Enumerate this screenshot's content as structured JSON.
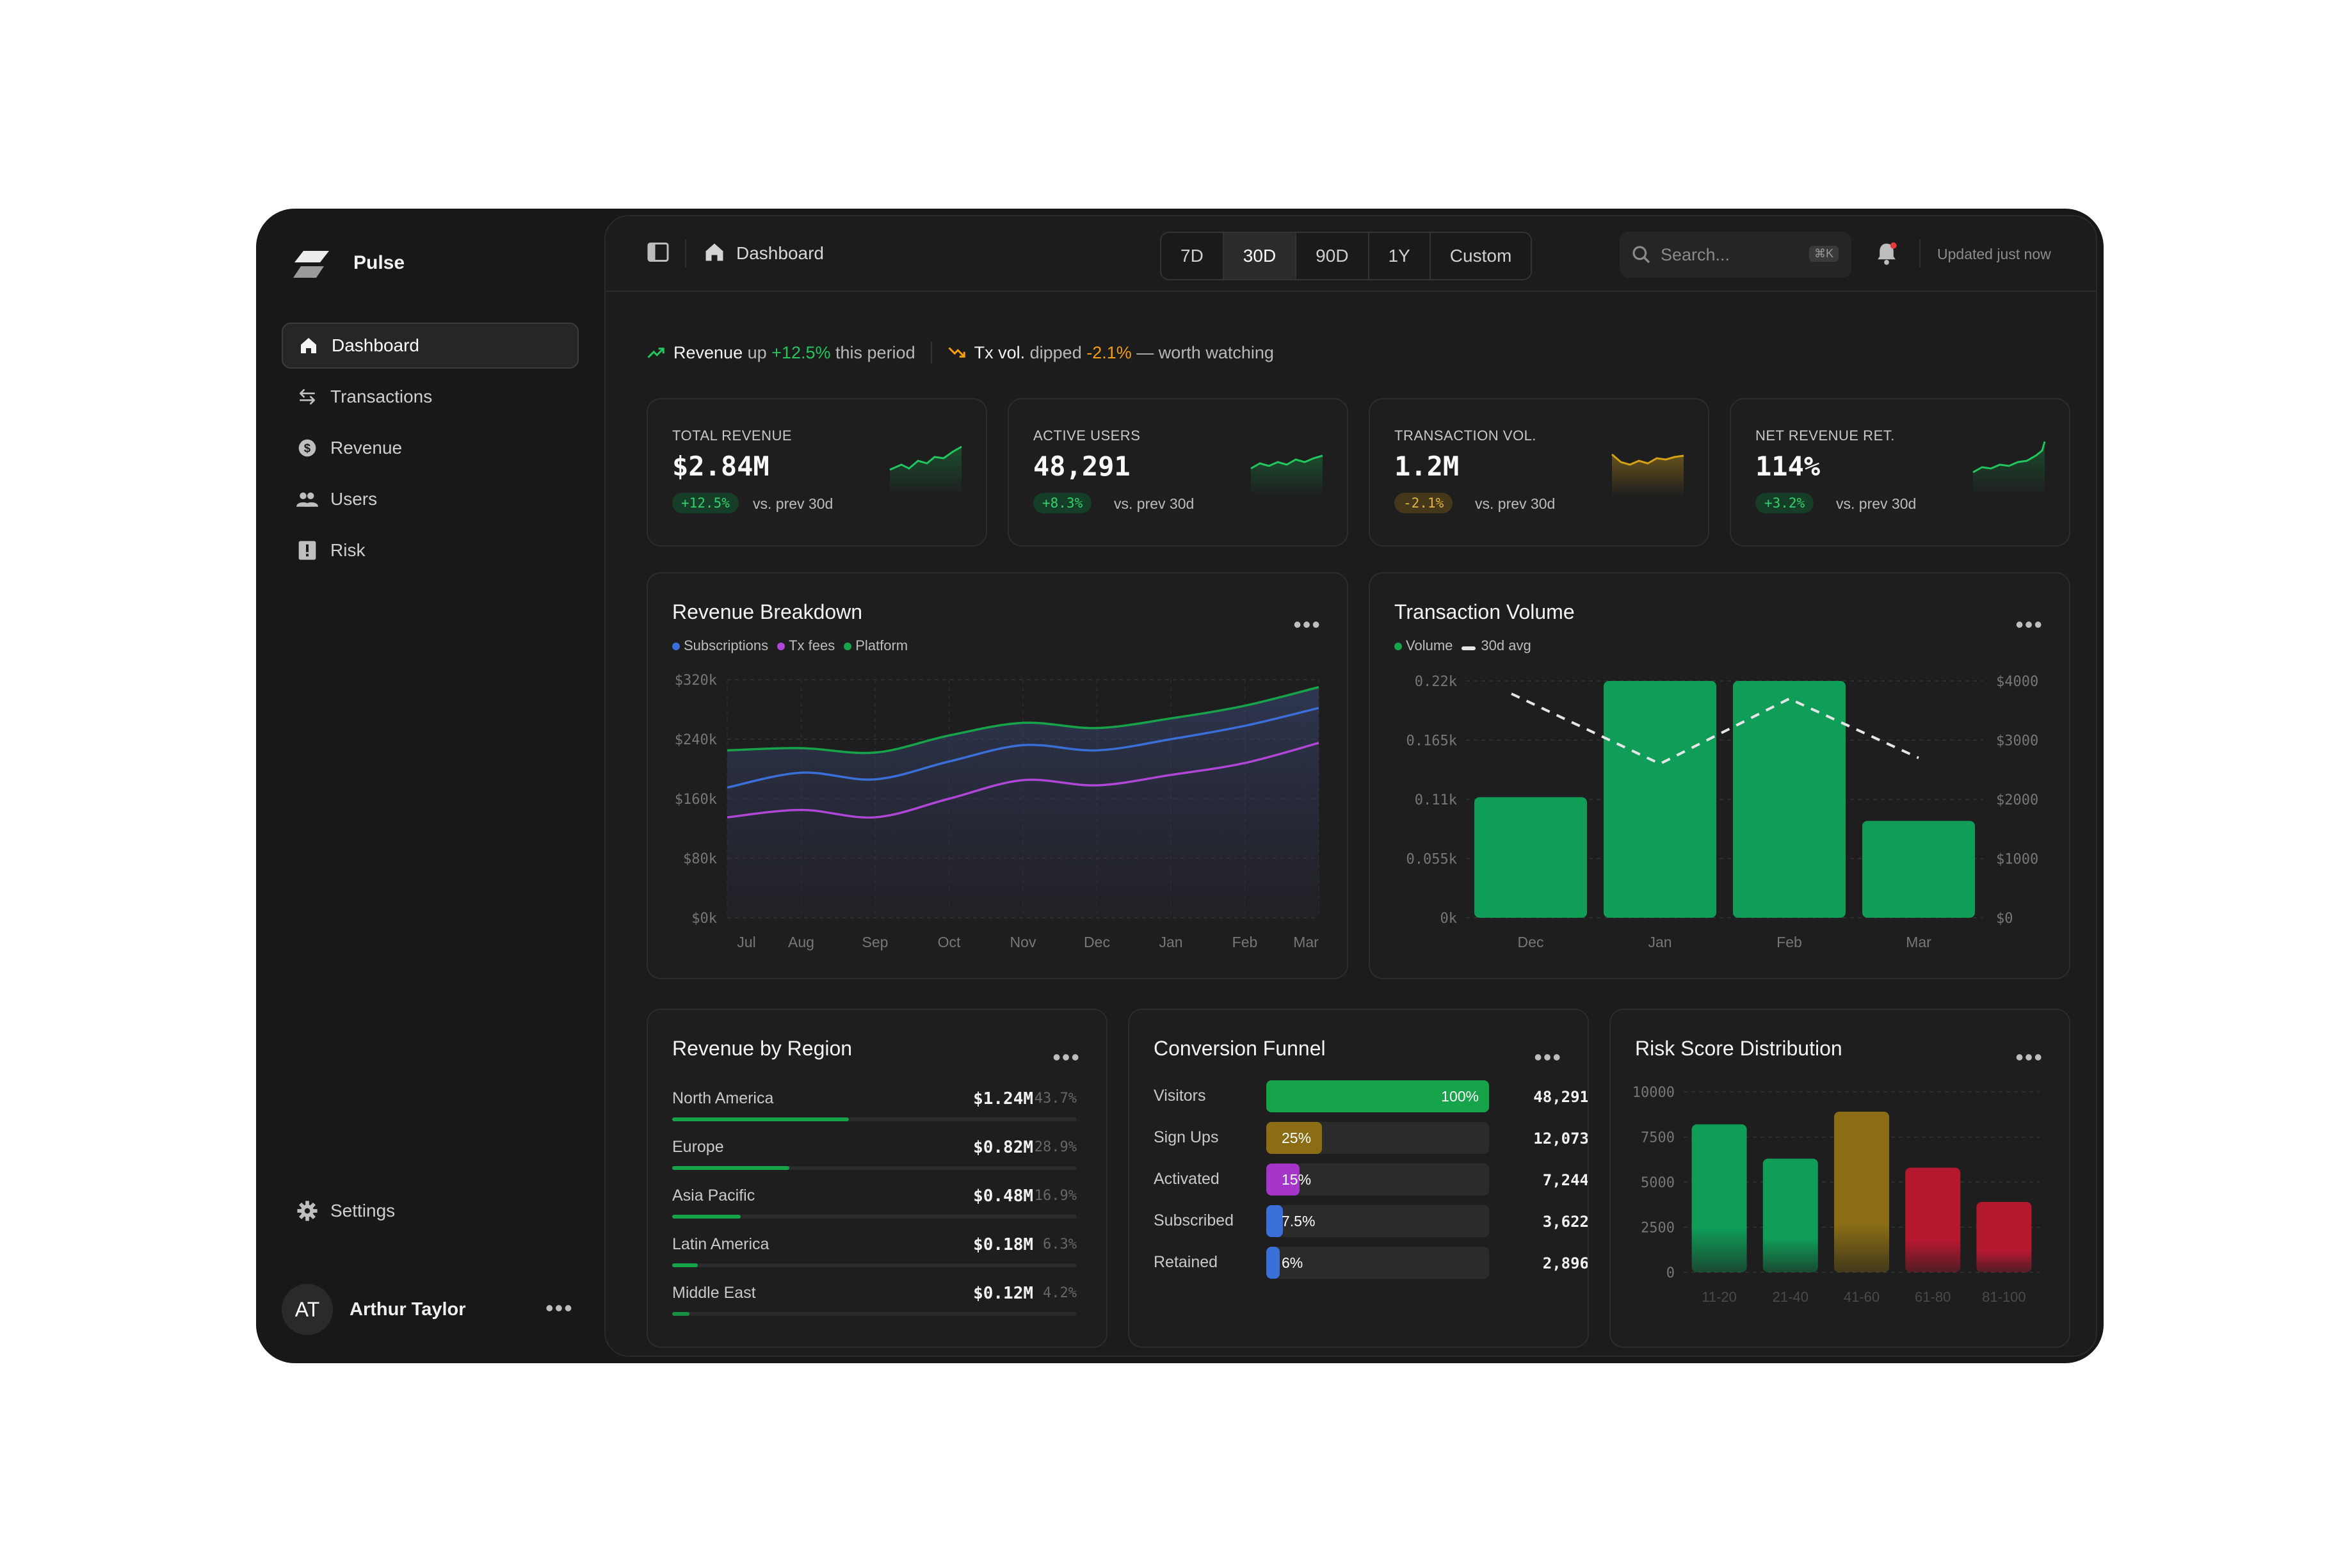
{
  "app": {
    "brand": "Pulse"
  },
  "sidebar": {
    "items": [
      {
        "label": "Dashboard",
        "icon": "home-icon"
      },
      {
        "label": "Transactions",
        "icon": "arrows-icon"
      },
      {
        "label": "Revenue",
        "icon": "dollar-icon"
      },
      {
        "label": "Users",
        "icon": "users-icon"
      },
      {
        "label": "Risk",
        "icon": "alert-icon"
      }
    ],
    "settings_label": "Settings",
    "user": {
      "initials": "AT",
      "name": "Arthur Taylor"
    }
  },
  "topbar": {
    "breadcrumb": "Dashboard",
    "ranges": [
      "7D",
      "30D",
      "90D",
      "1Y",
      "Custom"
    ],
    "selected_range": "30D",
    "search_placeholder": "Search...",
    "search_shortcut": "⌘K",
    "updated": "Updated just now"
  },
  "insights": {
    "first": {
      "subject": "Revenue",
      "verb": "up",
      "value": "+12.5%",
      "suffix": "this period"
    },
    "second": {
      "subject": "Tx vol.",
      "verb": "dipped",
      "value": "-2.1%",
      "suffix": "— worth watching"
    }
  },
  "kpis": [
    {
      "label": "TOTAL REVENUE",
      "value": "$2.84M",
      "change": "+12.5%",
      "compare": "vs. prev 30d",
      "tone": "up"
    },
    {
      "label": "ACTIVE USERS",
      "value": "48,291",
      "change": "+8.3%",
      "compare": "vs. prev 30d",
      "tone": "up"
    },
    {
      "label": "TRANSACTION VOL.",
      "value": "1.2M",
      "change": "-2.1%",
      "compare": "vs. prev 30d",
      "tone": "down"
    },
    {
      "label": "NET REVENUE RET.",
      "value": "114%",
      "change": "+3.2%",
      "compare": "vs. prev 30d",
      "tone": "up"
    }
  ],
  "colors": {
    "green": "#16a34a",
    "blue": "#3b6fd8",
    "purple": "#b046d6",
    "amber": "#8a6d14",
    "red": "#b3182f",
    "warn": "#f59e0b"
  },
  "chart_data": [
    {
      "type": "line",
      "title": "Revenue Breakdown",
      "categories": [
        "Jul",
        "Aug",
        "Sep",
        "Oct",
        "Nov",
        "Dec",
        "Jan",
        "Feb",
        "Mar"
      ],
      "y_ticks": [
        "$320k",
        "$240k",
        "$160k",
        "$80k",
        "$0k"
      ],
      "ylim": [
        0,
        320
      ],
      "legend": "top-left",
      "grid": true,
      "series": [
        {
          "name": "Platform",
          "color": "#16a34a",
          "values": [
            225,
            228,
            222,
            245,
            262,
            255,
            268,
            285,
            310
          ]
        },
        {
          "name": "Tx fees",
          "color": "#3b6fd8",
          "values": [
            175,
            195,
            186,
            210,
            232,
            225,
            240,
            258,
            282
          ]
        },
        {
          "name": "Subscriptions",
          "color": "#b046d6",
          "values": [
            135,
            145,
            135,
            160,
            185,
            178,
            192,
            208,
            235
          ]
        }
      ],
      "legend_order": [
        "Subscriptions",
        "Tx fees",
        "Platform"
      ]
    },
    {
      "type": "bar",
      "title": "Transaction Volume",
      "categories": [
        "Dec",
        "Jan",
        "Feb",
        "Mar"
      ],
      "left_ticks": [
        "0.22k",
        "0.165k",
        "0.11k",
        "0.055k",
        "0k"
      ],
      "right_ticks": [
        "$4000",
        "$3000",
        "$2000",
        "$1000",
        "$0"
      ],
      "ylim": [
        0,
        0.22
      ],
      "ylim_right": [
        0,
        4000
      ],
      "grid": true,
      "series": [
        {
          "name": "Volume",
          "color": "#0f9d58",
          "values": [
            0.112,
            0.22,
            0.22,
            0.09
          ]
        },
        {
          "name": "30d avg",
          "color": "#e6e6e6",
          "values": [
            4000,
            2600,
            3700,
            2700
          ]
        }
      ]
    },
    {
      "type": "bar",
      "title": "Risk Score Distribution",
      "categories": [
        "11-20",
        "21-40",
        "41-60",
        "61-80",
        "81-100"
      ],
      "y_ticks": [
        "10000",
        "7500",
        "5000",
        "2500",
        "0"
      ],
      "ylim": [
        0,
        10000
      ],
      "grid": true,
      "values": [
        8200,
        6300,
        8900,
        5800,
        3900
      ],
      "colors": [
        "#0f9d58",
        "#0f9d58",
        "#8a6d14",
        "#b3182f",
        "#b3182f"
      ]
    }
  ],
  "panels": {
    "region": {
      "title": "Revenue by Region",
      "rows": [
        {
          "name": "North America",
          "value": "$1.24M",
          "pct": "43.7%",
          "share": 0.437
        },
        {
          "name": "Europe",
          "value": "$0.82M",
          "pct": "28.9%",
          "share": 0.289
        },
        {
          "name": "Asia Pacific",
          "value": "$0.48M",
          "pct": "16.9%",
          "share": 0.169
        },
        {
          "name": "Latin America",
          "value": "$0.18M",
          "pct": "6.3%",
          "share": 0.063
        },
        {
          "name": "Middle East",
          "value": "$0.12M",
          "pct": "4.2%",
          "share": 0.042
        }
      ]
    },
    "funnel": {
      "title": "Conversion Funnel",
      "rows": [
        {
          "name": "Visitors",
          "pct": "100%",
          "count": "48,291",
          "share": 1.0,
          "color": "#16a34a"
        },
        {
          "name": "Sign Ups",
          "pct": "25%",
          "count": "12,073",
          "share": 0.25,
          "color": "#8a6d14"
        },
        {
          "name": "Activated",
          "pct": "15%",
          "count": "7,244",
          "share": 0.15,
          "color": "#a535c8"
        },
        {
          "name": "Subscribed",
          "pct": "7.5%",
          "count": "3,622",
          "share": 0.075,
          "color": "#3b6fd8"
        },
        {
          "name": "Retained",
          "pct": "6%",
          "count": "2,896",
          "share": 0.06,
          "color": "#3b6fd8"
        }
      ]
    }
  }
}
